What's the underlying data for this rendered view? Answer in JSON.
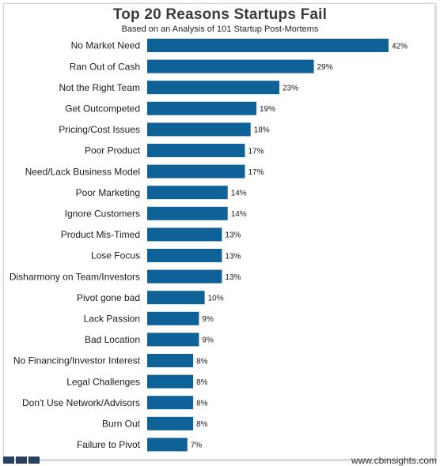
{
  "chart_data": {
    "type": "bar",
    "orientation": "horizontal",
    "title": "Top 20 Reasons Startups Fail",
    "subtitle": "Based on an Analysis of 101 Startup Post-Mortems",
    "categories": [
      "No Market Need",
      "Ran Out of Cash",
      "Not the Right Team",
      "Get Outcompeted",
      "Pricing/Cost Issues",
      "Poor Product",
      "Need/Lack Business Model",
      "Poor Marketing",
      "Ignore Customers",
      "Product Mis-Timed",
      "Lose Focus",
      "Disharmony on Team/Investors",
      "Pivot gone bad",
      "Lack Passion",
      "Bad Location",
      "No Financing/Investor Interest",
      "Legal Challenges",
      "Don't Use Network/Advisors",
      "Burn Out",
      "Failure to Pivot"
    ],
    "values": [
      42,
      29,
      23,
      19,
      18,
      17,
      17,
      14,
      14,
      13,
      13,
      13,
      10,
      9,
      9,
      8,
      8,
      8,
      8,
      7
    ],
    "data_labels": [
      "42%",
      "29%",
      "23%",
      "19%",
      "18%",
      "17%",
      "17%",
      "14%",
      "14%",
      "13%",
      "13%",
      "13%",
      "10%",
      "9%",
      "9%",
      "8%",
      "8%",
      "8%",
      "8%",
      "7%"
    ],
    "xlim": [
      0,
      42
    ],
    "grid": false,
    "legend": "none",
    "bar_color": "#0f6298"
  },
  "footer": {
    "url": "www.cbinsights.com",
    "logo_color": "#2a4060"
  }
}
